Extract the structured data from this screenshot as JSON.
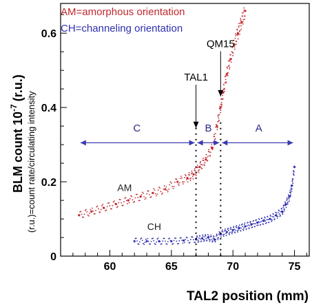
{
  "chart_data": {
    "type": "scatter",
    "xlabel": "TAL2 position  (mm)",
    "ylabel": "BLM count 10",
    "ylabel_exponent": "-7",
    "ylabel_unit": "(r.u.)",
    "ylabel_sub": "(r.u.)=count rate/circulating intensity",
    "xlim": [
      56,
      76.2
    ],
    "ylim": [
      0,
      0.68
    ],
    "x_ticks": [
      60,
      65,
      70,
      75
    ],
    "y_ticks": [
      0,
      0.2,
      0.4,
      0.6
    ],
    "x_tick_labels": [
      "60",
      "65",
      "70",
      "75"
    ],
    "y_tick_labels": [
      "0",
      "0.2",
      "0.4",
      "0.6"
    ],
    "grid": false,
    "legend": {
      "placement": "top-left",
      "entries": [
        "AM=amorphous orientation",
        "CH=channeling orientation"
      ]
    },
    "series": [
      {
        "name": "AM",
        "label": "AM",
        "color": "#c0282d",
        "x": [
          57.5,
          58.5,
          59.5,
          60.5,
          61.5,
          62.5,
          63.5,
          64.5,
          65.5,
          66.3,
          66.8,
          67.3,
          67.8,
          68.3,
          68.7,
          69.0,
          69.2,
          69.5,
          69.8,
          70.1,
          70.4,
          70.7,
          71.0
        ],
        "y": [
          0.11,
          0.12,
          0.13,
          0.14,
          0.15,
          0.16,
          0.17,
          0.18,
          0.2,
          0.21,
          0.22,
          0.24,
          0.26,
          0.29,
          0.35,
          0.4,
          0.44,
          0.49,
          0.53,
          0.57,
          0.6,
          0.63,
          0.66
        ]
      },
      {
        "name": "CH",
        "label": "CH",
        "color": "#2f2fb0",
        "x": [
          62.0,
          63.0,
          64.0,
          65.0,
          66.0,
          67.0,
          67.5,
          68.0,
          68.5,
          69.0,
          69.5,
          70.0,
          70.5,
          71.0,
          71.5,
          72.0,
          72.5,
          73.0,
          73.5,
          74.0,
          74.3,
          74.6,
          74.8,
          75.0
        ],
        "y": [
          0.04,
          0.04,
          0.04,
          0.04,
          0.042,
          0.045,
          0.048,
          0.05,
          0.045,
          0.06,
          0.065,
          0.07,
          0.075,
          0.08,
          0.085,
          0.09,
          0.095,
          0.1,
          0.11,
          0.12,
          0.14,
          0.16,
          0.19,
          0.24
        ]
      }
    ],
    "annotations": [
      {
        "text": "TAL1",
        "x": 67.0,
        "y_text": 0.465,
        "y_arrow": 0.345
      },
      {
        "text": "QM15",
        "x": 69.0,
        "y_text": 0.555,
        "y_arrow": 0.43
      },
      {
        "text": "C",
        "x": 62.2,
        "y": 0.335
      },
      {
        "text": "B",
        "x": 68.0,
        "y": 0.335
      },
      {
        "text": "A",
        "x": 72.1,
        "y": 0.335
      }
    ],
    "region_bounds": [
      57.5,
      67.0,
      69.0,
      75.0
    ],
    "region_arrow_y": 0.305,
    "vertical_markers": [
      67.0,
      69.0
    ]
  }
}
